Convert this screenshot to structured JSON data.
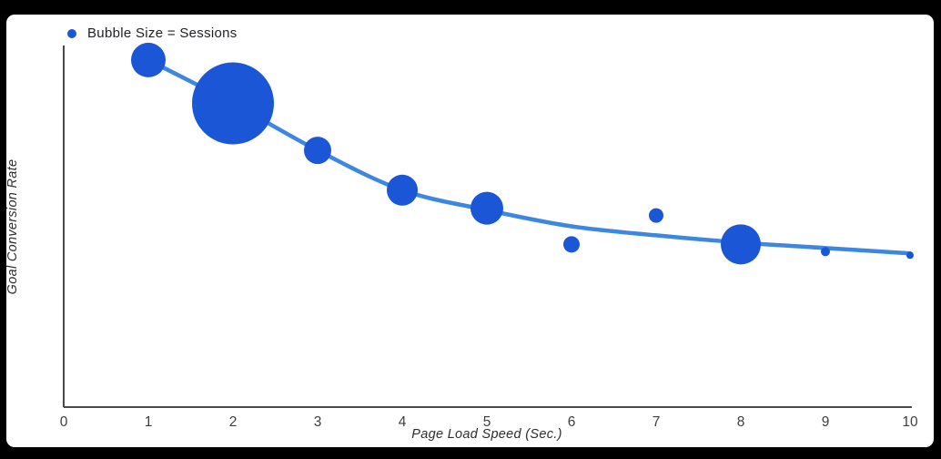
{
  "page": {
    "background_color": "#000000",
    "card_color": "#ffffff"
  },
  "legend": {
    "label": "Bubble Size = Sessions",
    "marker_color": "#1a56d6"
  },
  "chart_data": {
    "type": "scatter",
    "subtype": "bubble-with-trend-line",
    "title": "",
    "xlabel": "Page Load Speed (Sec.)",
    "ylabel": "Goal Conversion Rate",
    "xlim": [
      0,
      10
    ],
    "x_ticks": [
      0,
      1,
      2,
      3,
      4,
      5,
      6,
      7,
      8,
      9,
      10
    ],
    "y_axis_labeled": false,
    "ylim_relative": [
      0,
      100
    ],
    "grid": false,
    "legend_position": "top-left",
    "series": [
      {
        "name": "Goal Conversion Rate bubbles (size = Sessions)",
        "points": [
          {
            "x": 1,
            "y_rel": 96,
            "radius_px": 19,
            "sessions_relative": 18
          },
          {
            "x": 2,
            "y_rel": 84,
            "radius_px": 45,
            "sessions_relative": 100
          },
          {
            "x": 3,
            "y_rel": 71,
            "radius_px": 15,
            "sessions_relative": 11
          },
          {
            "x": 4,
            "y_rel": 60,
            "radius_px": 17,
            "sessions_relative": 14
          },
          {
            "x": 5,
            "y_rel": 55,
            "radius_px": 18,
            "sessions_relative": 16
          },
          {
            "x": 6,
            "y_rel": 45,
            "radius_px": 9,
            "sessions_relative": 4
          },
          {
            "x": 7,
            "y_rel": 53,
            "radius_px": 8,
            "sessions_relative": 3
          },
          {
            "x": 8,
            "y_rel": 45,
            "radius_px": 22,
            "sessions_relative": 24
          },
          {
            "x": 9,
            "y_rel": 43,
            "radius_px": 5,
            "sessions_relative": 1
          },
          {
            "x": 10,
            "y_rel": 42,
            "radius_px": 4,
            "sessions_relative": 1
          }
        ]
      }
    ],
    "trend_line": {
      "x": [
        1,
        2,
        3,
        4,
        5,
        6,
        7,
        8,
        9,
        10
      ],
      "y_rel": [
        96,
        84,
        71,
        60,
        54.5,
        50,
        47.5,
        45.5,
        44,
        42.5
      ]
    },
    "colors": {
      "bubble": "#1a56d6",
      "trend_line": "#3d87e0",
      "axis": "#4a4a4a",
      "tick_label": "#3e3e3e"
    }
  }
}
